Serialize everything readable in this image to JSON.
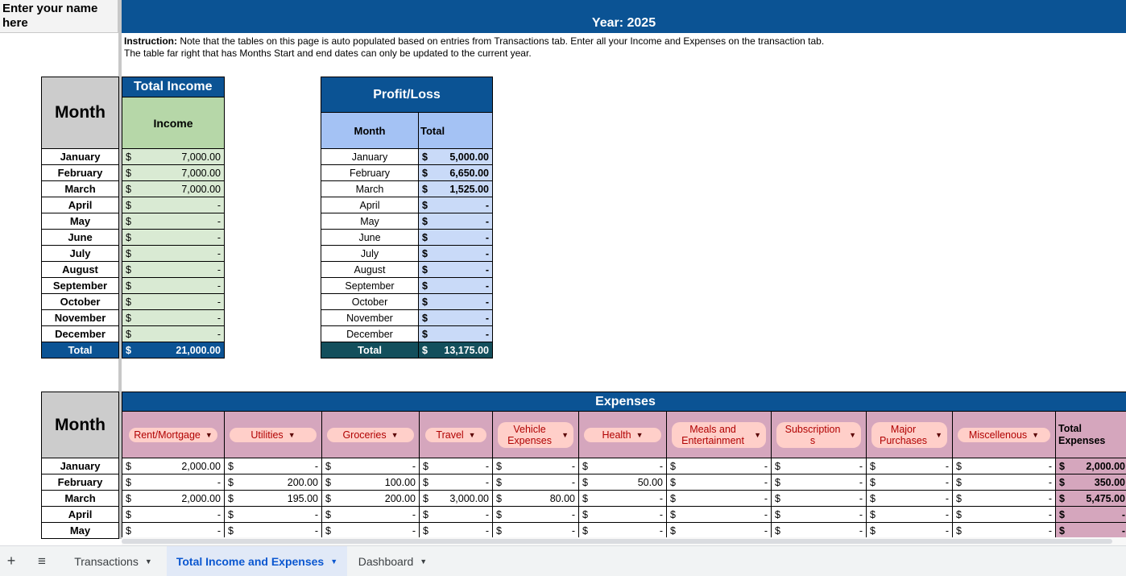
{
  "name_cell": "Enter your name here",
  "year_title": "Year: 2025",
  "instruction": {
    "label": "Instruction:",
    "line1": " Note that the tables on this page is auto populated based on entries from Transactions tab. Enter all your Income and Expenses on the transaction tab.",
    "line2": "The table far right that has Months Start and end dates can only be updated to the current year."
  },
  "months": [
    "January",
    "February",
    "March",
    "April",
    "May",
    "June",
    "July",
    "August",
    "September",
    "October",
    "November",
    "December"
  ],
  "income": {
    "month_header": "Month",
    "title": "Total Income",
    "col_header": "Income",
    "values": [
      "7,000.00",
      "7,000.00",
      "7,000.00",
      "-",
      "-",
      "-",
      "-",
      "-",
      "-",
      "-",
      "-",
      "-"
    ],
    "total_label": "Total",
    "total": "21,000.00",
    "currency": "$"
  },
  "profit": {
    "title": "Profit/Loss",
    "month_header": "Month",
    "total_header": "Total",
    "values": [
      "5,000.00",
      "6,650.00",
      "1,525.00",
      "-",
      "-",
      "-",
      "-",
      "-",
      "-",
      "-",
      "-",
      "-"
    ],
    "total_label": "Total",
    "total": "13,175.00"
  },
  "expenses": {
    "month_header": "Month",
    "title": "Expenses",
    "categories": [
      "Rent/Mortgage",
      "Utilities",
      "Groceries",
      "Travel",
      "Vehicle Expenses",
      "Health",
      "Meals and Entertainment",
      "Subscription s",
      "Major Purchases",
      "Miscellenous"
    ],
    "total_header": "Total Expenses",
    "months": [
      "January",
      "February",
      "March",
      "April",
      "May"
    ],
    "rows": [
      [
        "2,000.00",
        "-",
        "-",
        "-",
        "-",
        "-",
        "-",
        "-",
        "-",
        "-"
      ],
      [
        "-",
        "200.00",
        "100.00",
        "-",
        "-",
        "50.00",
        "-",
        "-",
        "-",
        "-"
      ],
      [
        "2,000.00",
        "195.00",
        "200.00",
        "3,000.00",
        "80.00",
        "-",
        "-",
        "-",
        "-",
        "-"
      ],
      [
        "-",
        "-",
        "-",
        "-",
        "-",
        "-",
        "-",
        "-",
        "-",
        "-"
      ],
      [
        "-",
        "-",
        "-",
        "-",
        "-",
        "-",
        "-",
        "-",
        "-",
        "-"
      ]
    ],
    "totals": [
      "2,000.00",
      "350.00",
      "5,475.00",
      "-",
      "-"
    ]
  },
  "sheet_tabs": [
    {
      "label": "Transactions",
      "active": false
    },
    {
      "label": "Total Income and Expenses",
      "active": true
    },
    {
      "label": "Dashboard",
      "active": false
    }
  ],
  "icons": {
    "add": "plus-icon",
    "list": "sheet-list-icon"
  }
}
